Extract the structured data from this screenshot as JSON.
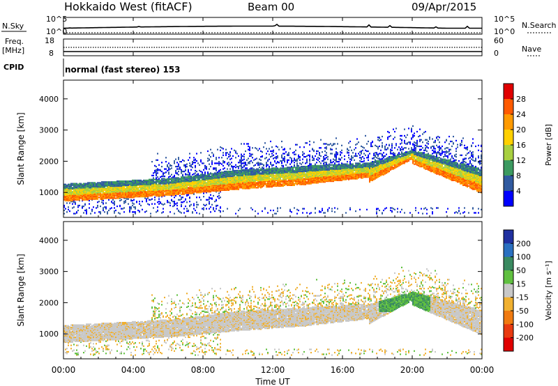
{
  "header": {
    "title": "Hokkaido West (fitACF)",
    "beam": "Beam 00",
    "date": "09/Apr/2015"
  },
  "top_panels": {
    "nsky_label": "N.Sky",
    "nsearch_label": "N.Search",
    "noise_tick_top": "10^5",
    "noise_tick_bottom": "10^0",
    "freq_label_line1": "Freq.",
    "freq_label_line2": "[MHz]",
    "freq_tick_top": "18",
    "freq_tick_bottom": "8",
    "nave_label": "Nave",
    "nave_tick_top": "60",
    "nave_tick_bottom": "0",
    "cpid_label": "CPID",
    "cpid_text": "normal (fast stereo) 153"
  },
  "chart_data": [
    {
      "type": "heatmap",
      "name": "power",
      "ylabel": "Slant Range [km]",
      "ylim": [
        200,
        4600
      ],
      "yticks": [
        1000,
        2000,
        3000,
        4000
      ],
      "colorbar_label": "Power [dB]",
      "colorbar_ticks": [
        "28",
        "24",
        "20",
        "16",
        "12",
        "8",
        "4"
      ],
      "colorbar_colors": [
        "#e00000",
        "#ff5a00",
        "#ff9a00",
        "#ffd000",
        "#a8d040",
        "#3c9a60",
        "#305aa0",
        "#0000ff"
      ]
    },
    {
      "type": "heatmap",
      "name": "velocity",
      "ylabel": "Slant Range [km]",
      "ylim": [
        200,
        4600
      ],
      "yticks": [
        1000,
        2000,
        3000,
        4000
      ],
      "colorbar_label": "Velocity [m s⁻¹]",
      "colorbar_ticks": [
        "200",
        "100",
        "50",
        "15",
        "-15",
        "-50",
        "-100",
        "-200"
      ],
      "colorbar_colors": [
        "#2030a0",
        "#2a70c0",
        "#3a8a60",
        "#60c040",
        "#c8c8c8",
        "#f0b030",
        "#f07a10",
        "#e83a10",
        "#e00000"
      ]
    }
  ],
  "time_axis": {
    "label": "Time UT",
    "ticks": [
      "00:00",
      "04:00",
      "08:00",
      "12:00",
      "16:00",
      "20:00",
      "00:00"
    ]
  }
}
